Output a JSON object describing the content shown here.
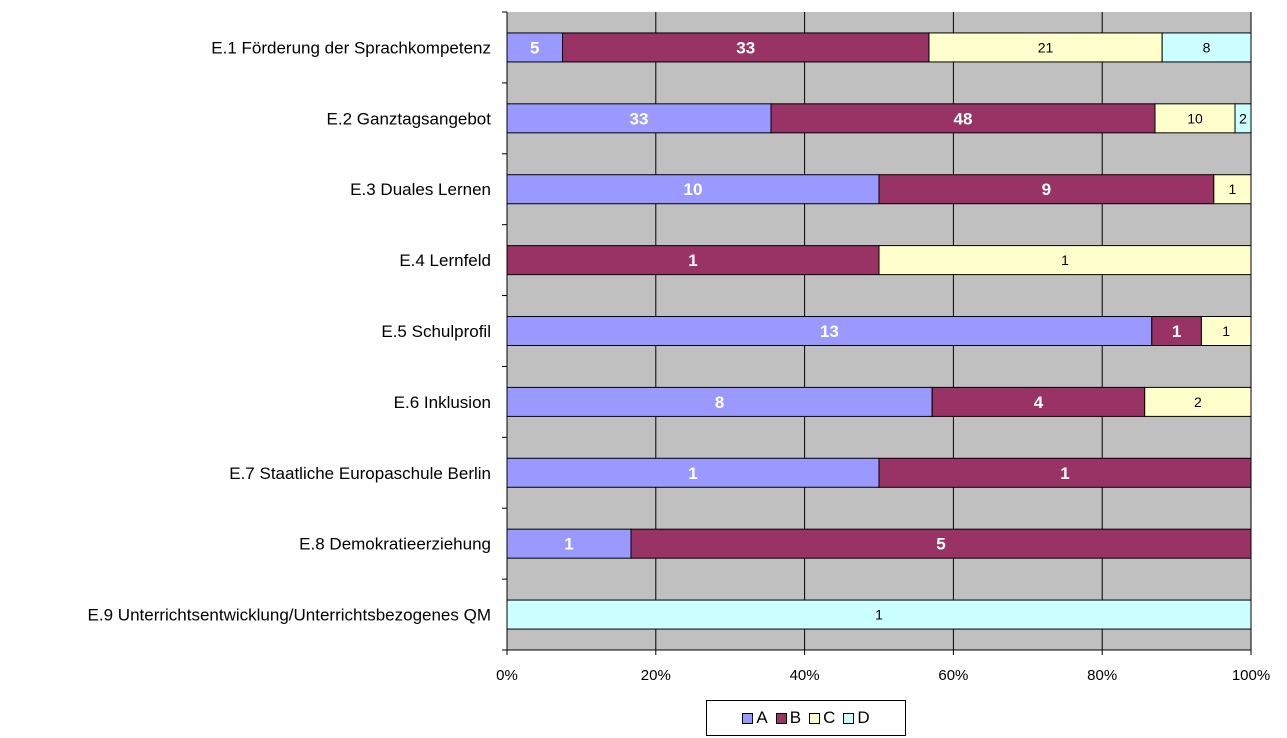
{
  "chart_data": {
    "type": "bar",
    "orientation": "horizontal",
    "stacking": "percent",
    "title": "",
    "xlabel": "",
    "ylabel": "",
    "categories": [
      "E.1 Förderung der Sprachkompetenz",
      "E.2 Ganztagsangebot",
      "E.3 Duales Lernen",
      "E.4 Lernfeld",
      "E.5 Schulprofil",
      "E.6 Inklusion",
      "E.7 Staatliche Europaschule Berlin",
      "E.8 Demokratieerziehung",
      "E.9 Unterrichtsentwicklung/Unterrichtsbezogenes QM"
    ],
    "series": [
      {
        "name": "A",
        "color": "#9999ff",
        "values": [
          5,
          33,
          10,
          0,
          13,
          8,
          1,
          1,
          0
        ]
      },
      {
        "name": "B",
        "color": "#993366",
        "values": [
          33,
          48,
          9,
          1,
          1,
          4,
          1,
          5,
          0
        ]
      },
      {
        "name": "C",
        "color": "#ffffcc",
        "values": [
          21,
          10,
          1,
          1,
          1,
          2,
          0,
          0,
          0
        ]
      },
      {
        "name": "D",
        "color": "#ccffff",
        "values": [
          8,
          2,
          0,
          0,
          0,
          0,
          0,
          0,
          1
        ]
      }
    ],
    "x_ticks": [
      "0%",
      "20%",
      "40%",
      "60%",
      "80%",
      "100%"
    ],
    "xlim": [
      0,
      100
    ],
    "plot_background": "#c0c0c0",
    "grid": true,
    "legend_position": "bottom"
  }
}
